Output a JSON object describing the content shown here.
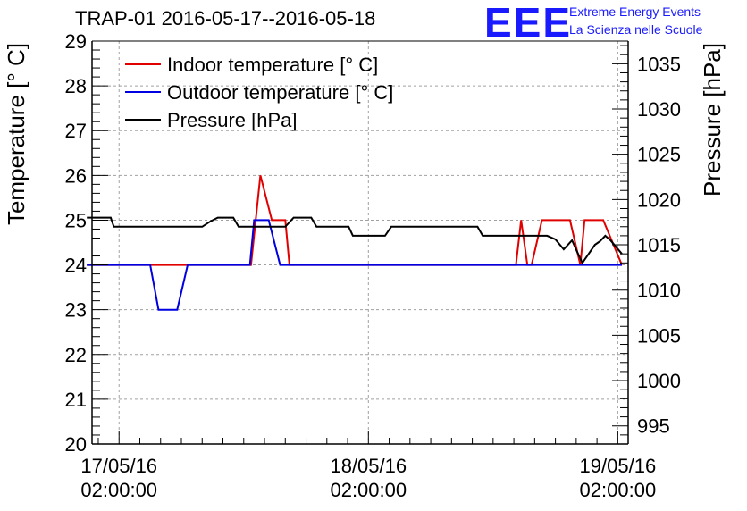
{
  "header": {
    "title": "TRAP-01 2016-05-17--2016-05-18",
    "logo_text": "EEE",
    "logo_line1": "Extreme Energy Events",
    "logo_line2": "La Scienza nelle Scuole",
    "logo_color": "#1a1aff"
  },
  "chart_data": {
    "type": "line",
    "title": "TRAP-01 2016-05-17--2016-05-18",
    "x_unit": "hours since 17/05/16 02:00:00",
    "xlim": [
      -2.6,
      49.0
    ],
    "x_ticks": [
      {
        "x": 0,
        "date": "17/05/16",
        "time": "02:00:00"
      },
      {
        "x": 24,
        "date": "18/05/16",
        "time": "02:00:00"
      },
      {
        "x": 48,
        "date": "19/05/16",
        "time": "02:00:00"
      }
    ],
    "ylabel_left": "Temperature [° C]",
    "ylim_left": [
      20,
      29
    ],
    "yticks_left": [
      "20",
      "21",
      "22",
      "23",
      "24",
      "25",
      "26",
      "27",
      "28",
      "29"
    ],
    "ylabel_right": "Pressure [hPa]",
    "ylim_right": [
      993,
      1037.5
    ],
    "yticks_right": [
      "995",
      "1000",
      "1005",
      "1010",
      "1015",
      "1020",
      "1025",
      "1030",
      "1035"
    ],
    "grid": true,
    "legend_position": "top-left",
    "series": [
      {
        "name": "Indoor temperature [° C]",
        "axis": "left",
        "color": "#e00000",
        "x": [
          -3.1,
          3.0,
          3.3,
          6.6,
          12.7,
          13.6,
          14.7,
          16.0,
          16.4,
          38.2,
          38.7,
          39.3,
          39.7,
          40.7,
          43.4,
          44.4,
          44.8,
          45.9,
          46.6,
          48.4
        ],
        "y": [
          24,
          24,
          24,
          24,
          24,
          26,
          25,
          25,
          24,
          24,
          25,
          24,
          24,
          25,
          25,
          24,
          25,
          25,
          25,
          24
        ]
      },
      {
        "name": "Outdoor temperature [° C]",
        "axis": "left",
        "color": "#0000e0",
        "x": [
          -3.1,
          3.0,
          3.8,
          5.6,
          6.6,
          12.6,
          13.0,
          14.4,
          15.5,
          48.4
        ],
        "y": [
          24,
          24,
          23,
          23,
          24,
          24,
          25,
          25,
          24,
          24
        ]
      },
      {
        "name": "Pressure [hPa]",
        "axis": "right",
        "color": "#000000",
        "x": [
          -3.1,
          -0.8,
          -0.5,
          8.0,
          8.8,
          9.5,
          11.0,
          11.5,
          16.0,
          16.8,
          18.5,
          19.0,
          22.1,
          22.5,
          25.6,
          26.2,
          27.8,
          28.3,
          34.5,
          35.0,
          39.8,
          40.6,
          41.2,
          42.0,
          42.8,
          43.6,
          44.1,
          44.6,
          45.8,
          46.3,
          46.8,
          47.3,
          48.4
        ],
        "y": [
          1018,
          1018,
          1017,
          1017,
          1017.6,
          1018,
          1018,
          1017,
          1017,
          1018,
          1018,
          1017,
          1017,
          1016,
          1016,
          1017,
          1017,
          1017,
          1017,
          1016,
          1016,
          1016,
          1016,
          1015.6,
          1014.5,
          1015.5,
          1014.2,
          1013,
          1015,
          1015.4,
          1016,
          1015.5,
          1014
        ]
      }
    ]
  }
}
